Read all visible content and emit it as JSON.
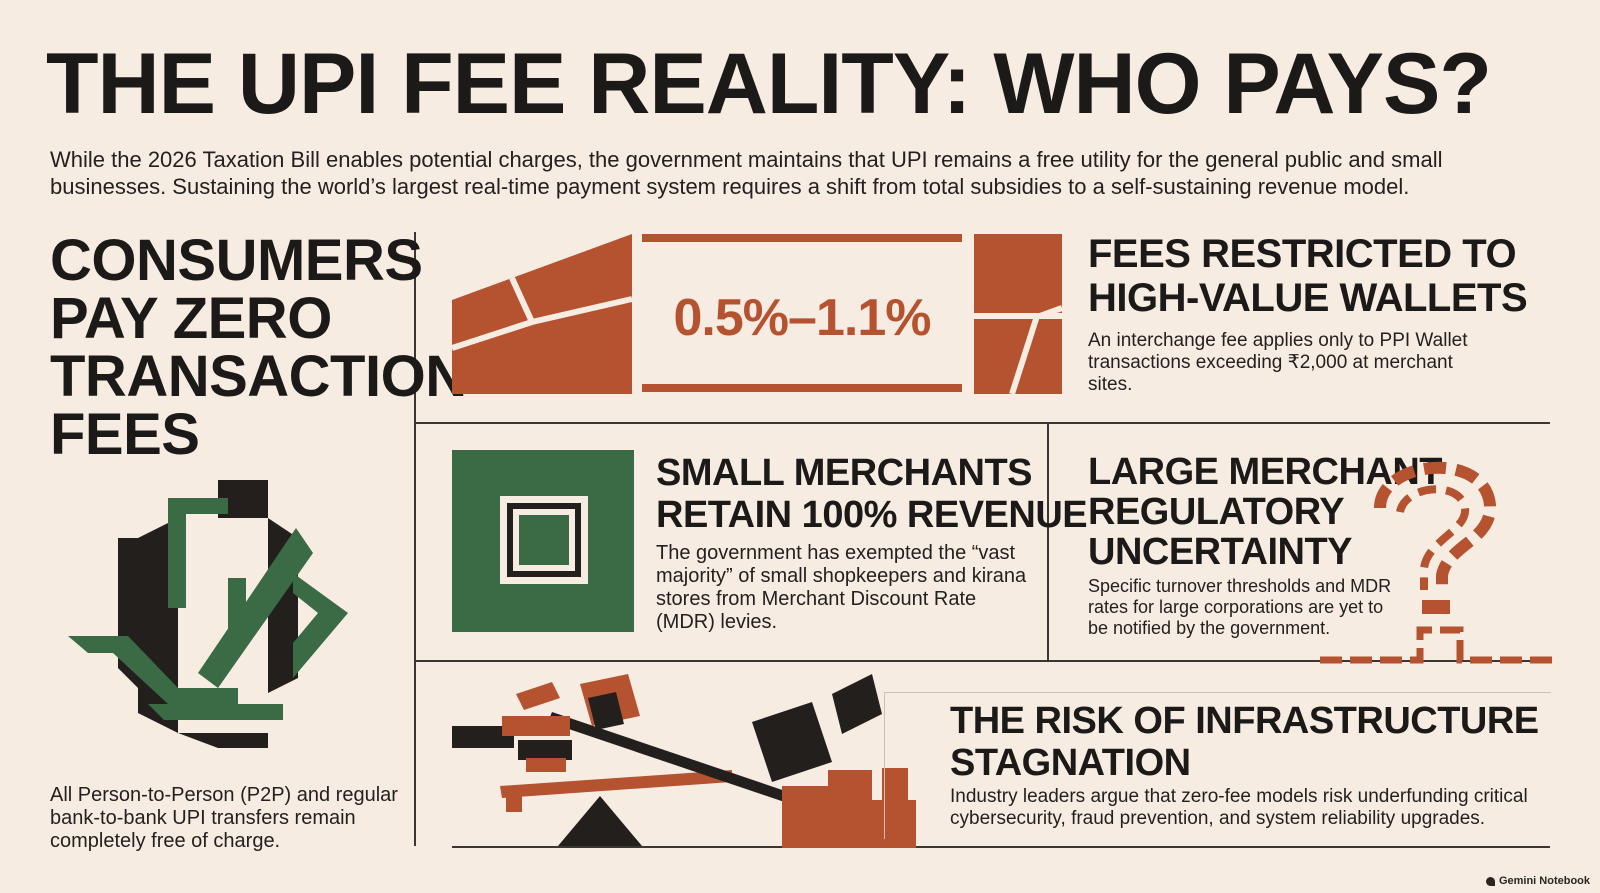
{
  "title": "THE UPI FEE REALITY: WHO PAYS?",
  "intro": "While the 2026 Taxation Bill enables potential charges, the government maintains that UPI remains a free utility for the general public and small businesses. Sustaining the world’s largest real-time payment system requires a shift from total subsidies to a self-sustaining revenue model.",
  "consumers": {
    "heading_lines": [
      "CONSUMERS",
      "PAY ZERO",
      "TRANSACTION",
      "FEES"
    ],
    "body": "All Person-to-Person (P2P) and regular bank-to-bank UPI transfers remain completely free of charge."
  },
  "wallets": {
    "fee_range": "0.5%–1.1%",
    "heading_lines": [
      "FEES RESTRICTED TO",
      "HIGH-VALUE WALLETS"
    ],
    "body": "An interchange fee applies only to PPI Wallet transactions exceeding ₹2,000 at merchant sites."
  },
  "small_merchants": {
    "heading_lines": [
      "SMALL MERCHANTS",
      "RETAIN 100% REVENUE"
    ],
    "body": "The government has exempted the “vast majority” of small shopkeepers and kirana stores from Merchant Discount Rate (MDR) levies."
  },
  "large_merchants": {
    "heading_lines": [
      "LARGE MERCHANT",
      "REGULATORY",
      "UNCERTAINTY"
    ],
    "body": "Specific turnover thresholds and MDR rates for large corporations are yet to be notified by the government."
  },
  "infrastructure": {
    "heading_lines": [
      "THE RISK OF INFRASTRUCTURE",
      "STAGNATION"
    ],
    "body": "Industry leaders argue that zero-fee models risk underfunding critical cybersecurity, fraud prevention, and system reliability upgrades."
  },
  "watermark": "Gemini Notebook",
  "colors": {
    "background": "#f7ece2",
    "rust": "#b5522f",
    "green": "#3a6b45",
    "dark": "#231f1d"
  },
  "icons": [
    "transfer-arrows-icon",
    "fee-ramp-icon",
    "square-frame-icon",
    "question-mark-icon",
    "seesaw-balance-icon"
  ]
}
